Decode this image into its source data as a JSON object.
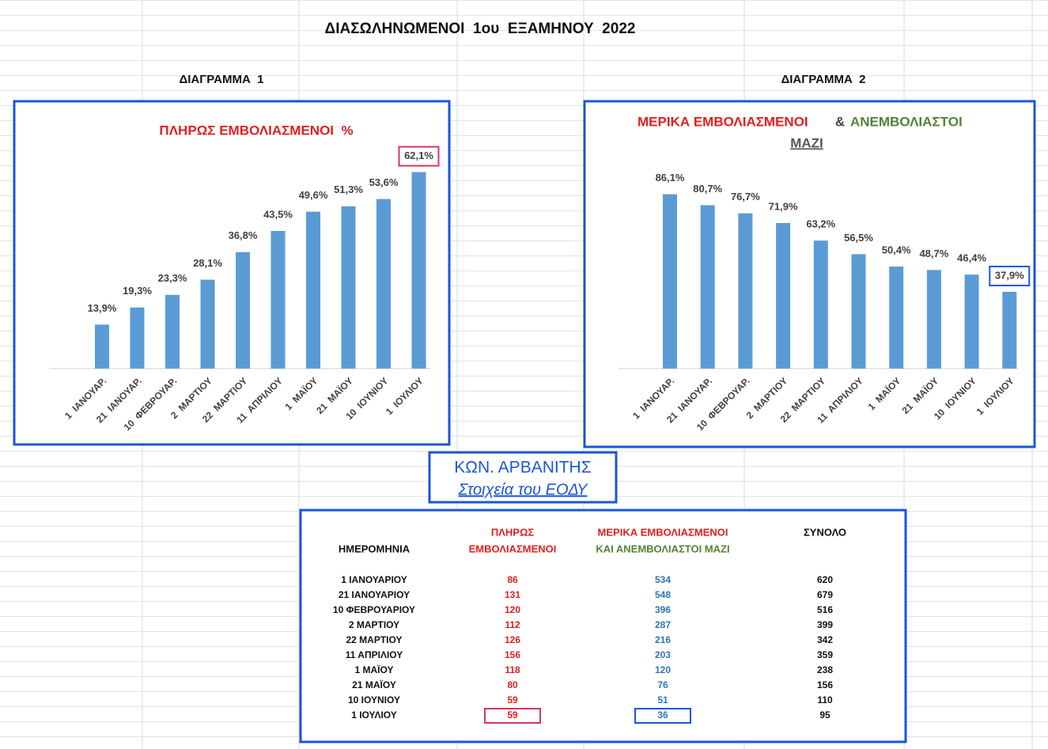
{
  "title": "ΔΙΑΣΩΛΗΝΩΜΕΝΟΙ  1ου  ΕΞΑΜΗΝΟΥ  2022",
  "chart_data": [
    {
      "type": "bar",
      "caption": "ΔΙΑΓΡΑΜΜΑ  1",
      "title": [
        "ΠΛΗΡΩΣ ΕΜΒΟΛΙΑΣΜΕΝΟΙ  %"
      ],
      "categories": [
        "1  ΙΑΝΟΥΑΡ.",
        "21  ΙΑΝΟΥΑΡ.",
        "10  ΦΕΒΡΟΥΑΡ.",
        "2  ΜΑΡΤΙΟΥ",
        "22  ΜΑΡΤΙΟΥ",
        "11  ΑΠΡΙΛΙΟΥ",
        "1  ΜΑΪΟΥ",
        "21  ΜΑΪΟΥ",
        "10  ΙΟΥΝΙΟΥ",
        "1  ΙΟΥΛΙΟΥ"
      ],
      "values": [
        13.9,
        19.3,
        23.3,
        28.1,
        36.8,
        43.5,
        49.6,
        51.3,
        53.6,
        62.1
      ],
      "value_labels": [
        "13,9%",
        "19,3%",
        "23,3%",
        "28,1%",
        "36,8%",
        "43,5%",
        "49,6%",
        "51,3%",
        "53,6%",
        "62,1%"
      ],
      "color": "#5b9bd5",
      "ylim": [
        0,
        70
      ]
    },
    {
      "type": "bar",
      "caption": "ΔΙΑΓΡΑΜΜΑ  2",
      "title": [
        "ΜΕΡΙΚΑ ΕΜΒΟΛΙΑΣΜΕΝΟΙ",
        "&",
        "ΑΝΕΜΒΟΛΙΑΣΤΟΙ",
        "ΜΑΖΙ"
      ],
      "categories": [
        "1  ΙΑΝΟΥΑΡ.",
        "21  ΙΑΝΟΥΑΡ.",
        "10  ΦΕΒΡΟΥΑΡ.",
        "2  ΜΑΡΤΙΟΥ",
        "22  ΜΑΡΤΙΟΥ",
        "11  ΑΠΡΙΛΙΟΥ",
        "1  ΜΑΪΟΥ",
        "21  ΜΑΪΟΥ",
        "10  ΙΟΥΝΙΟΥ",
        "1  ΙΟΥΛΙΟΥ"
      ],
      "values": [
        86.1,
        80.7,
        76.7,
        71.9,
        63.2,
        56.5,
        50.4,
        48.7,
        46.4,
        37.9
      ],
      "value_labels": [
        "86,1%",
        "80,7%",
        "76,7%",
        "71,9%",
        "63,2%",
        "56,5%",
        "50,4%",
        "48,7%",
        "46,4%",
        "37,9%"
      ],
      "color": "#5b9bd5",
      "ylim": [
        0,
        100
      ]
    }
  ],
  "author": [
    "ΚΩΝ. ΑΡΒΑΝΙΤΗΣ",
    "Στοιχεία του ΕΟΔΥ"
  ],
  "table": {
    "header": [
      [
        "ΗΜΕΡΟΜΗΝΙΑ"
      ],
      [
        "ΠΛΗΡΩΣ",
        "ΕΜΒΟΛΙΑΣΜΕΝΟΙ"
      ],
      [
        "ΜΕΡΙΚΑ ΕΜΒΟΛΙΑΣΜΕΝΟΙ",
        "ΚΑΙ ΑΝΕΜΒΟΛΙΑΣΤΟΙ ΜΑΖΙ"
      ],
      [
        "ΣΥΝΟΛΟ"
      ]
    ],
    "rows": [
      [
        "1 ΙΑΝΟΥΑΡΙΟΥ",
        86,
        534,
        620
      ],
      [
        "21 ΙΑΝΟΥΑΡΙΟΥ",
        131,
        548,
        679
      ],
      [
        "10 ΦΕΒΡΟΥΑΡΙΟΥ",
        120,
        396,
        516
      ],
      [
        "2 ΜΑΡΤΙΟΥ",
        112,
        287,
        399
      ],
      [
        "22 ΜΑΡΤΙΟΥ",
        126,
        216,
        342
      ],
      [
        "11 ΑΠΡΙΛΙΟΥ",
        156,
        203,
        359
      ],
      [
        "1 ΜΑΪΟΥ",
        118,
        120,
        238
      ],
      [
        "21 ΜΑΪΟΥ",
        80,
        76,
        156
      ],
      [
        "10 ΙΟΥΝΙΟΥ",
        59,
        51,
        110
      ],
      [
        "1 ΙΟΥΛΙΟΥ",
        59,
        36,
        95
      ]
    ]
  }
}
